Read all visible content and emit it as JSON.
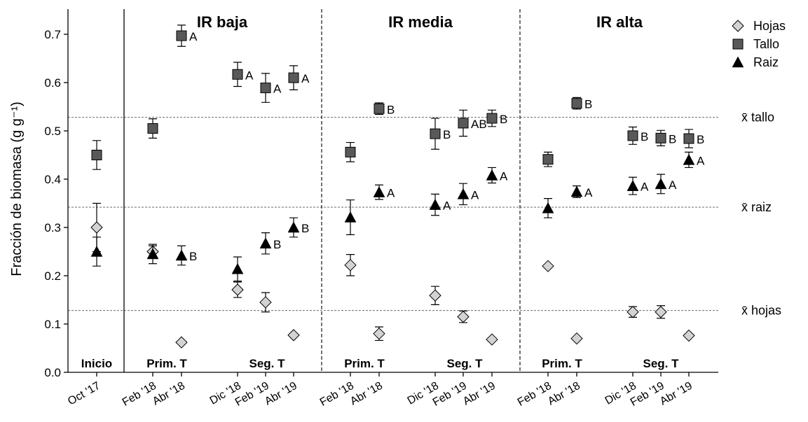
{
  "chart_data": {
    "type": "scatter",
    "ylabel": "Fracción de biomasa (g g⁻¹)",
    "ylim": [
      0,
      0.75
    ],
    "yticks": [
      "0.0",
      "0.1",
      "0.2",
      "0.3",
      "0.4",
      "0.5",
      "0.6",
      "0.7"
    ],
    "grid": false,
    "legend_position": "top-right",
    "legend": [
      {
        "name": "Hojas",
        "marker": "diamond",
        "color": "#d3d3d3"
      },
      {
        "name": "Tallo",
        "marker": "square",
        "color": "#595959"
      },
      {
        "name": "Raiz",
        "marker": "triangle",
        "color": "#000000"
      }
    ],
    "panels": [
      {
        "title": "",
        "bottom_label": "Inicio"
      },
      {
        "title": "IR baja",
        "bottom_labels": [
          "Prim. T",
          "Seg. T"
        ]
      },
      {
        "title": "IR media",
        "bottom_labels": [
          "Prim. T",
          "Seg. T"
        ]
      },
      {
        "title": "IR alta",
        "bottom_labels": [
          "Prim. T",
          "Seg. T"
        ]
      }
    ],
    "reference_lines": [
      {
        "label": "x̄ tallo",
        "value": 0.528
      },
      {
        "label": "x̄ raiz",
        "value": 0.342
      },
      {
        "label": "x̄ hojas",
        "value": 0.128
      }
    ],
    "categories": [
      "Oct '17",
      "Feb '18",
      "Abr '18",
      "Dic '18",
      "Feb '19",
      "Abr '19",
      "Feb '18",
      "Abr '18",
      "Dic '18",
      "Feb '19",
      "Abr '19",
      "Feb '18",
      "Abr '18",
      "Dic '18",
      "Feb '19",
      "Abr '19"
    ],
    "series": [
      {
        "name": "Hojas",
        "values": [
          0.3,
          0.25,
          0.062,
          0.171,
          0.145,
          0.077,
          0.222,
          0.08,
          0.159,
          0.115,
          0.068,
          0.22,
          0.07,
          0.125,
          0.125,
          0.076
        ],
        "errors": [
          0.05,
          0.012,
          0,
          0.016,
          0.02,
          0,
          0.022,
          0.014,
          0.019,
          0.012,
          0,
          0,
          0,
          0.011,
          0.013,
          0
        ],
        "letters": [
          "",
          "",
          "",
          "",
          "",
          "",
          "",
          "",
          "",
          "",
          "",
          "",
          "",
          "",
          "",
          ""
        ]
      },
      {
        "name": "Tallo",
        "values": [
          0.45,
          0.505,
          0.697,
          0.617,
          0.589,
          0.61,
          0.456,
          0.546,
          0.494,
          0.516,
          0.526,
          0.441,
          0.557,
          0.49,
          0.485,
          0.484
        ],
        "errors": [
          0.03,
          0.02,
          0.022,
          0.025,
          0.03,
          0.025,
          0.02,
          0.012,
          0.032,
          0.027,
          0.017,
          0.015,
          0.012,
          0.018,
          0.016,
          0.019
        ],
        "letters": [
          "",
          "",
          "A",
          "A",
          "A",
          "A",
          "",
          "B",
          "B",
          "AB",
          "B",
          "",
          "B",
          "B",
          "B",
          "B"
        ]
      },
      {
        "name": "Raiz",
        "values": [
          0.25,
          0.245,
          0.242,
          0.214,
          0.267,
          0.3,
          0.321,
          0.373,
          0.347,
          0.369,
          0.408,
          0.34,
          0.374,
          0.386,
          0.39,
          0.44
        ],
        "errors": [
          0.03,
          0.02,
          0.02,
          0.025,
          0.022,
          0.02,
          0.036,
          0.015,
          0.022,
          0.022,
          0.016,
          0.02,
          0.012,
          0.018,
          0.02,
          0.016
        ],
        "letters": [
          "",
          "",
          "B",
          "",
          "B",
          "B",
          "",
          "A",
          "A",
          "A",
          "A",
          "",
          "A",
          "A",
          "A",
          "A"
        ]
      }
    ]
  }
}
